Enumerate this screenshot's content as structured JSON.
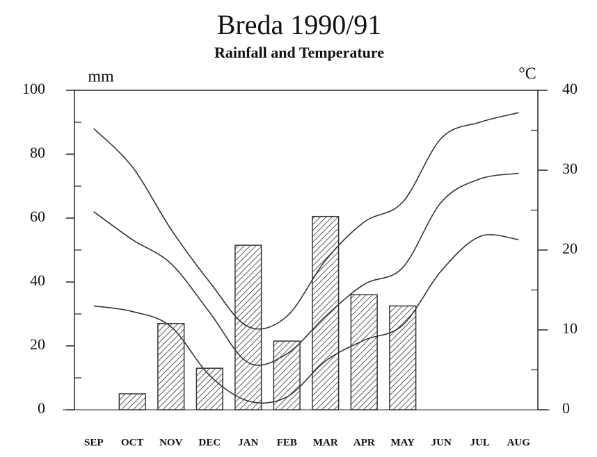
{
  "chart_data": {
    "type": "bar_line",
    "title": "Breda 1990/91",
    "subtitle": "Rainfall and Temperature",
    "y_label": "mm",
    "y2_label": "°C",
    "categories": [
      "SEP",
      "OCT",
      "NOV",
      "DEC",
      "JAN",
      "FEB",
      "MAR",
      "APR",
      "MAY",
      "JUN",
      "JUL",
      "AUG"
    ],
    "bars": {
      "color": "#333333",
      "values": [
        0,
        5,
        27,
        13,
        51.5,
        21.5,
        60.5,
        36,
        32.5,
        0,
        0,
        0
      ]
    },
    "series": [
      {
        "color": "#333333",
        "axis": "y2",
        "values": [
          35.2,
          30.4,
          22.6,
          16,
          10.4,
          11.7,
          18.7,
          23.5,
          26,
          34,
          36,
          37.2
        ]
      },
      {
        "color": "#333333",
        "axis": "y2",
        "values": [
          24.8,
          21.3,
          18.3,
          12.2,
          5.9,
          7,
          11.7,
          15.7,
          17.8,
          26,
          28.9,
          29.6
        ]
      },
      {
        "color": "#333333",
        "axis": "y2",
        "values": [
          13,
          12.3,
          10.4,
          4.3,
          1.1,
          1.6,
          6.1,
          8.7,
          10.6,
          17.4,
          21.7,
          21.3
        ]
      }
    ],
    "ylim": [
      0,
      100
    ],
    "yticks": [
      0,
      20,
      40,
      60,
      80,
      100
    ],
    "yminor": [
      10,
      30,
      50,
      70,
      90
    ],
    "y2lim": [
      0,
      40
    ],
    "y2ticks": [
      0,
      10,
      20,
      30,
      40
    ],
    "y2minor": [
      5,
      15,
      25,
      35
    ]
  }
}
